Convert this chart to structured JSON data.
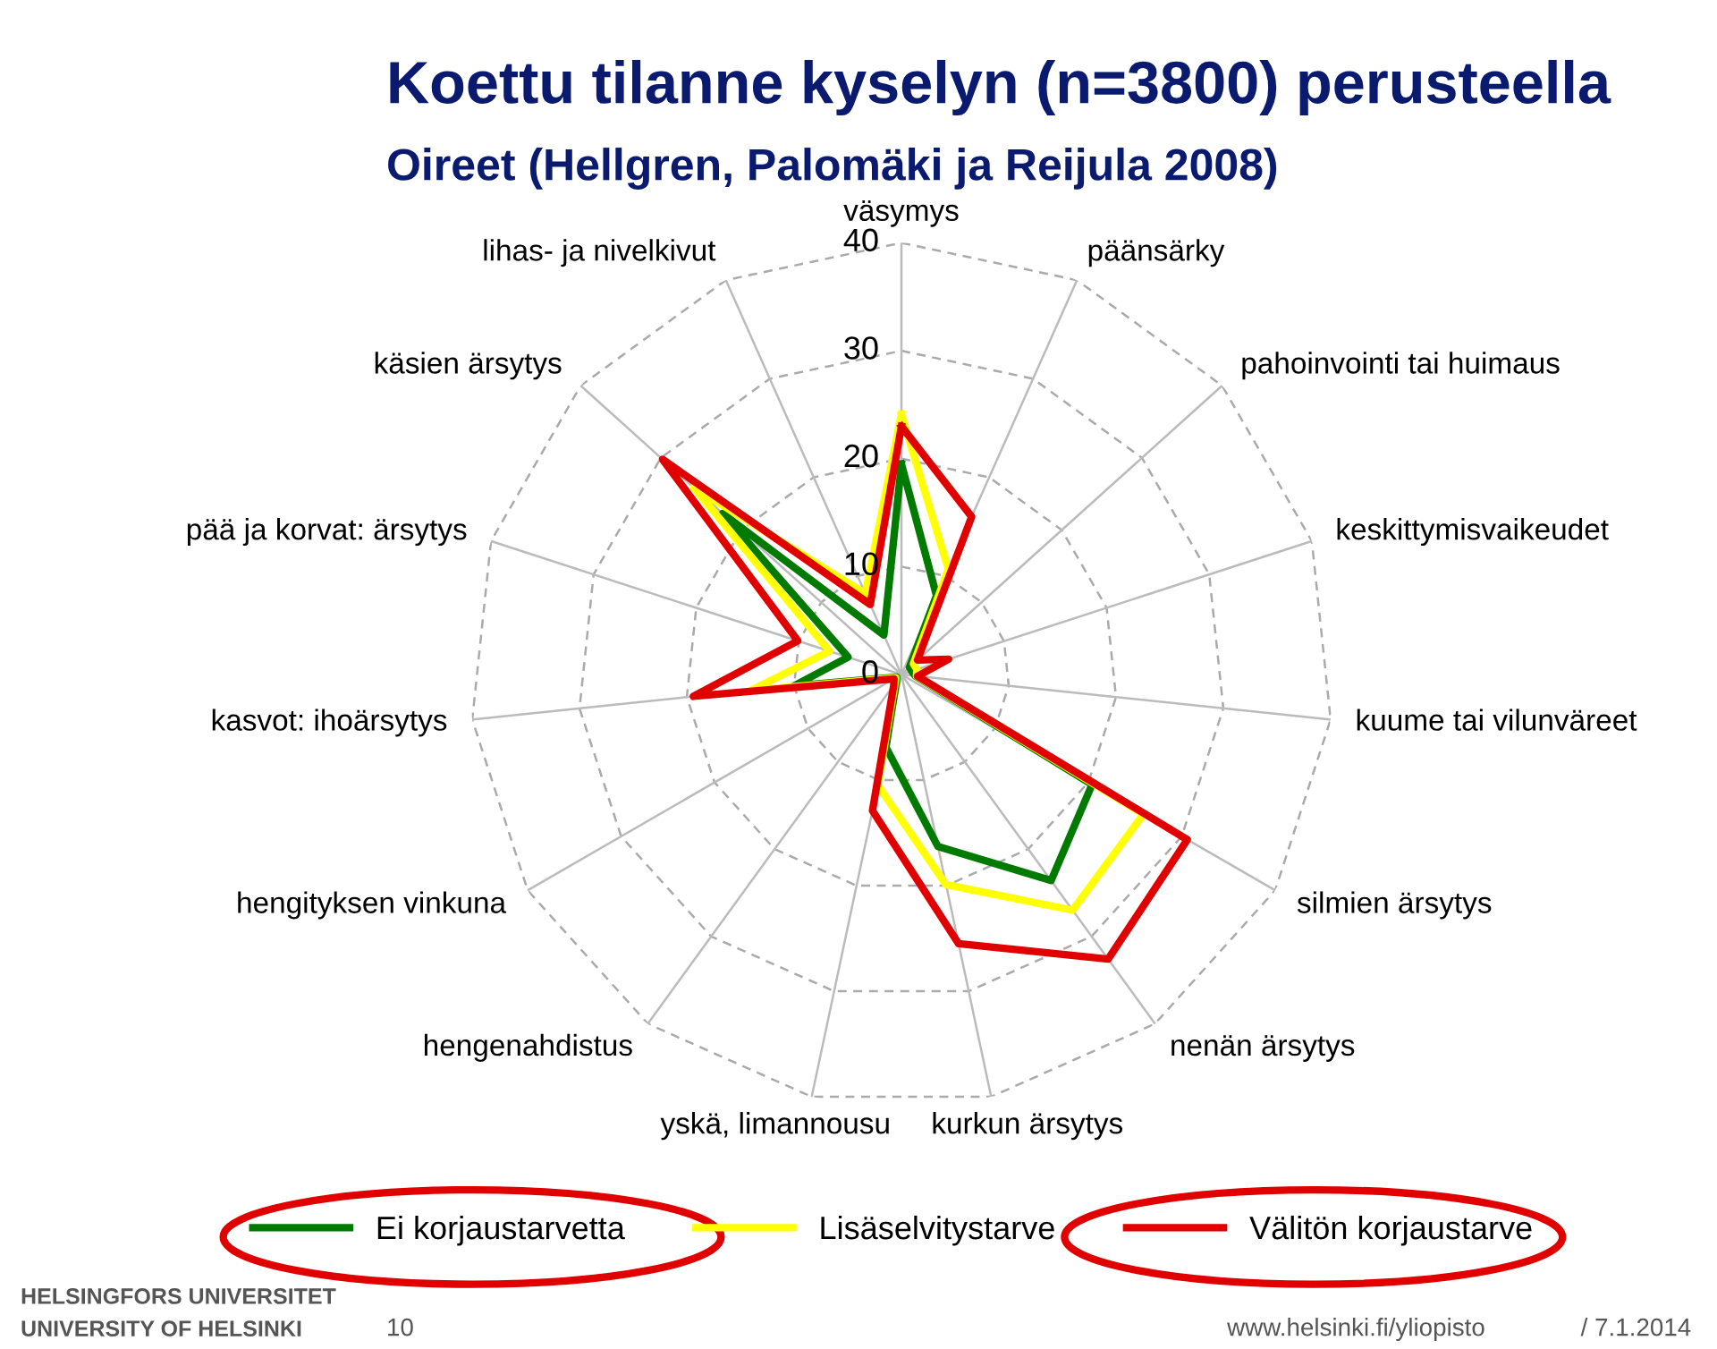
{
  "chart_data": {
    "type": "radar",
    "title": "Koettu tilanne kyselyn (n=3800) perusteella",
    "subtitle": "Oireet (Hellgren, Palomäki ja Reijula 2008)",
    "categories": [
      "väsymys",
      "päänsärky",
      "pahoinvointi tai huimaus",
      "keskittymisvaikeudet",
      "kuume tai vilunväreet",
      "silmien ärsytys",
      "nenän ärsytys",
      "kurkun ärsytys",
      "yskä, limannousu",
      "hengenahdistus",
      "hengityksen vinkuna",
      "kasvot: ihoärsytys",
      "pää ja korvat: ärsytys",
      "käsien ärsytys",
      "lihas- ja nivelkivut"
    ],
    "series": [
      {
        "name": "Ei korjaustarvetta",
        "color": "#007a00",
        "values": [
          19.5,
          8,
          1,
          1,
          1.3,
          20.4,
          23.6,
          16.3,
          6.9,
          0.8,
          0.5,
          10,
          5.2,
          22.3,
          4
        ]
      },
      {
        "name": "Lisäselvitystarve",
        "color": "#ffff00",
        "values": [
          24.1,
          10.7,
          1.5,
          1.5,
          1.4,
          25.9,
          27,
          19.9,
          10.5,
          1,
          0.6,
          14,
          7,
          25.9,
          8.2
        ]
      },
      {
        "name": "Välitön korjaustarve",
        "color": "#e00000",
        "values": [
          23,
          16,
          2,
          4.6,
          1.5,
          30.6,
          32.6,
          25.5,
          12.9,
          1.2,
          0.8,
          19.4,
          10.1,
          29.8,
          7.1
        ]
      }
    ],
    "ylim": [
      0,
      40
    ],
    "yticks": [
      0,
      10,
      20,
      30,
      40
    ],
    "grid": true,
    "legend": "bottom",
    "annotations": [
      "HELSINGFORS UNIVERSITET",
      "UNIVERSITY OF HELSINKI",
      "10",
      "www.helsinki.fi/yliopisto",
      "/ 7.1.2014"
    ]
  }
}
